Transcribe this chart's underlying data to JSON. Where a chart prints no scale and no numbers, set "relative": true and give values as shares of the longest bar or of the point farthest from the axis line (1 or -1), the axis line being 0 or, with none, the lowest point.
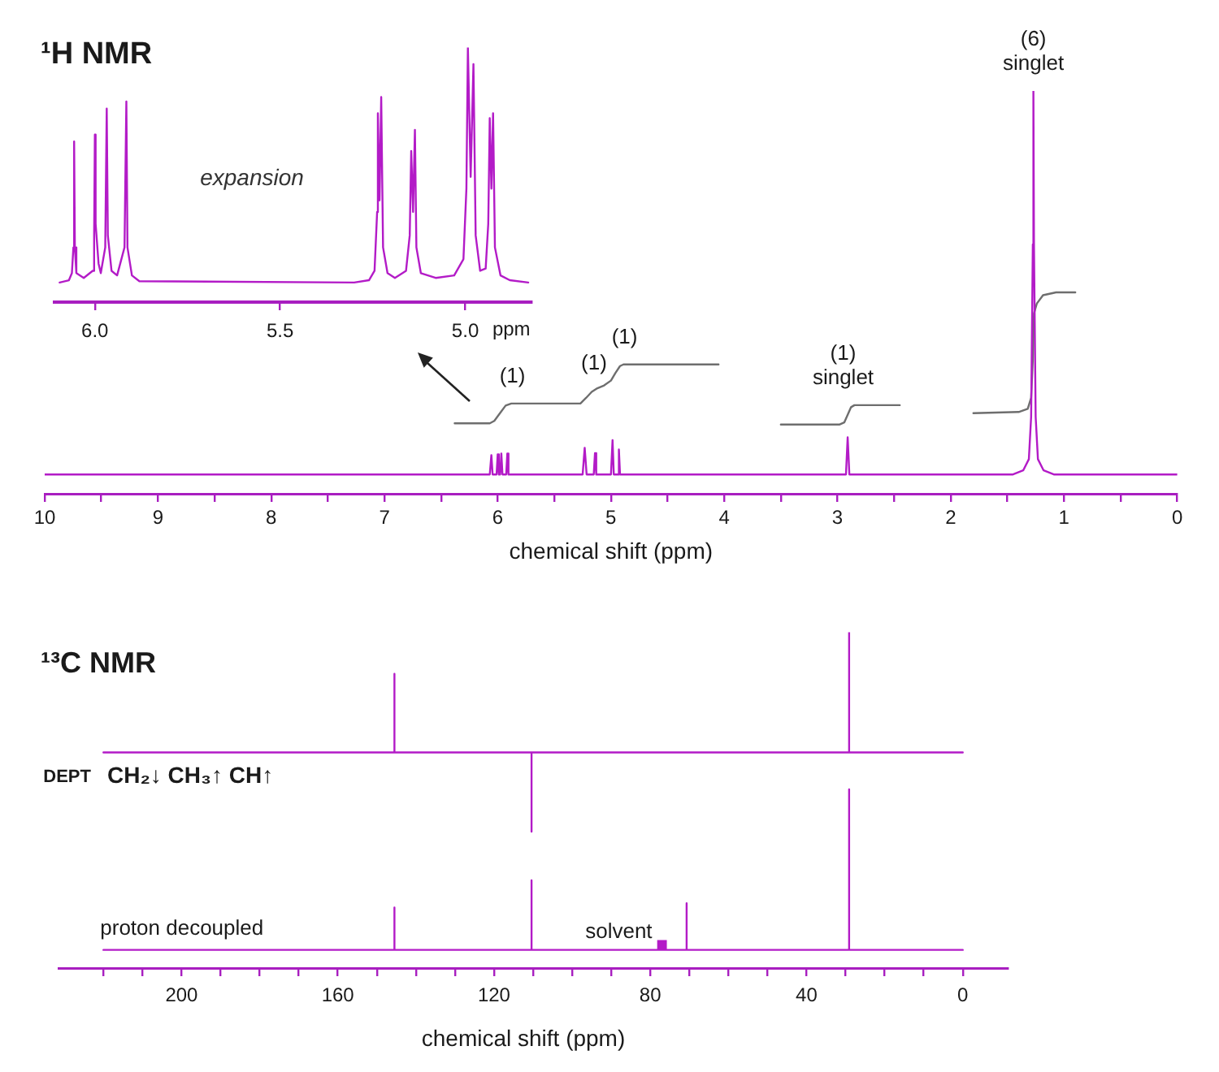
{
  "chart_data": [
    {
      "type": "line",
      "title": "¹H NMR",
      "xlabel": "chemical shift (ppm)",
      "relative": true,
      "marker": "none",
      "xlim": [
        10,
        0
      ],
      "xticks": [
        10,
        {
          "value": 9.5,
          "label": null
        },
        9,
        {
          "value": 8.5,
          "label": null
        },
        8,
        {
          "value": 7.5,
          "label": null
        },
        7,
        {
          "value": 6.5,
          "label": null
        },
        6,
        {
          "value": 5.5,
          "label": null
        },
        5,
        {
          "value": 4.5,
          "label": null
        },
        4,
        {
          "value": 3.5,
          "label": null
        },
        3,
        {
          "value": 2.5,
          "label": null
        },
        2,
        {
          "value": 1.5,
          "label": null
        },
        1,
        {
          "value": 0.5,
          "label": null
        },
        0
      ],
      "series": [
        {
          "color": "#b31bc7",
          "x": [
            10,
            6.07,
            6.056,
            6.045,
            6.01,
            6.0,
            5.99,
            5.978,
            5.968,
            5.958,
            5.925,
            5.915,
            5.905,
            5.25,
            5.232,
            5.215,
            5.152,
            5.141,
            5.13,
            5.0,
            4.986,
            4.975,
            4.94,
            4.93,
            4.92,
            2.925,
            2.91,
            2.895,
            1.45,
            1.36,
            1.31,
            1.29,
            1.275,
            1.27,
            1.265,
            1.25,
            1.23,
            1.18,
            1.09,
            0
          ],
          "values": [
            0.048,
            0.048,
            0.096,
            0.048,
            0.048,
            0.098,
            0.048,
            0.048,
            0.1,
            0.048,
            0.048,
            0.1,
            0.048,
            0.048,
            0.114,
            0.048,
            0.048,
            0.101,
            0.048,
            0.048,
            0.133,
            0.048,
            0.048,
            0.11,
            0.048,
            0.048,
            0.14,
            0.048,
            0.048,
            0.058,
            0.086,
            0.191,
            0.619,
            1,
            0.619,
            0.191,
            0.086,
            0.058,
            0.048,
            0.048
          ]
        },
        {
          "color": "#6e6e6e",
          "x": [
            6.38,
            6.07,
            6.03,
            5.98,
            5.93,
            5.88,
            5.27,
            5.22,
            5.17,
            5.12,
            5.06,
            5.0,
            4.96,
            4.92,
            4.89,
            4.05
          ],
          "values": [
            0.175,
            0.175,
            0.181,
            0.2,
            0.219,
            0.224,
            0.224,
            0.238,
            0.253,
            0.262,
            0.269,
            0.281,
            0.3,
            0.317,
            0.321,
            0.321
          ]
        },
        {
          "color": "#6e6e6e",
          "x": [
            3.5,
            2.98,
            2.94,
            2.91,
            2.88,
            2.85,
            2.45
          ],
          "values": [
            0.172,
            0.172,
            0.177,
            0.196,
            0.215,
            0.22,
            0.22
          ]
        },
        {
          "color": "#6e6e6e",
          "x": [
            1.8,
            1.4,
            1.32,
            1.29,
            1.275,
            1.265,
            1.24,
            1.185,
            1.07,
            0.9
          ],
          "values": [
            0.2,
            0.203,
            0.211,
            0.238,
            0.334,
            0.448,
            0.472,
            0.493,
            0.5,
            0.5
          ]
        }
      ],
      "annotations": [
        {
          "text": "(6)\nsinglet",
          "x": 1.27,
          "y": 1
        },
        {
          "text": "(1)\nsinglet",
          "x": 2.95,
          "y": 0.22
        },
        {
          "text": "(1)",
          "x": 5.87,
          "y": 0.224
        },
        {
          "text": "(1)",
          "x": 5.15,
          "y": 0.257
        },
        {
          "text": "(1)",
          "x": 4.88,
          "y": 0.321
        }
      ]
    },
    {
      "type": "line",
      "xlabel": "ppm",
      "relative": true,
      "marker": "none",
      "xlim": [
        6.11,
        4.82
      ],
      "xticks": [
        {
          "value": 6,
          "label": "6.0"
        },
        {
          "value": 5.5,
          "label": "5.5"
        },
        {
          "value": 5,
          "label": "5.0"
        }
      ],
      "series": [
        {
          "color": "#b31bc7",
          "x": [
            6.095,
            6.07,
            6.062,
            6.058,
            6.056,
            6.054,
            6.05,
            6.03,
            6.006,
            6.002,
            6.0,
            5.998,
            5.99,
            5.984,
            5.972,
            5.968,
            5.965,
            5.955,
            5.94,
            5.92,
            5.915,
            5.912,
            5.9,
            5.88,
            5.3,
            5.26,
            5.245,
            5.238,
            5.236,
            5.2315,
            5.227,
            5.222,
            5.21,
            5.19,
            5.16,
            5.15,
            5.146,
            5.141,
            5.136,
            5.132,
            5.12,
            5.08,
            5.03,
            5.005,
            4.997,
            4.993,
            4.9855,
            4.978,
            4.972,
            4.96,
            4.945,
            4.938,
            4.934,
            4.9295,
            4.925,
            4.92,
            4.905,
            4.88,
            4.83
          ],
          "values": [
            0.077,
            0.086,
            0.114,
            0.215,
            0.631,
            0.215,
            0.114,
            0.095,
            0.123,
            0.262,
            0.658,
            0.308,
            0.151,
            0.114,
            0.215,
            0.76,
            0.262,
            0.123,
            0.105,
            0.215,
            0.788,
            0.215,
            0.105,
            0.082,
            0.077,
            0.086,
            0.123,
            0.354,
            0.742,
            0.4,
            0.806,
            0.215,
            0.114,
            0.095,
            0.123,
            0.262,
            0.594,
            0.354,
            0.677,
            0.215,
            0.114,
            0.095,
            0.105,
            0.169,
            0.446,
            1,
            0.492,
            0.935,
            0.262,
            0.123,
            0.132,
            0.308,
            0.723,
            0.446,
            0.742,
            0.215,
            0.105,
            0.086,
            0.077
          ]
        }
      ],
      "annotations": [
        "expansion"
      ]
    },
    {
      "type": "line",
      "title": "¹³C NMR",
      "xlabel": "chemical shift (ppm)",
      "relative": true,
      "marker": "none",
      "xlim": [
        231.5,
        -11.5
      ],
      "xticks": [
        {
          "value": 220,
          "label": null
        },
        {
          "value": 210,
          "label": null
        },
        200,
        {
          "value": 190,
          "label": null
        },
        {
          "value": 180,
          "label": null
        },
        {
          "value": 170,
          "label": null
        },
        160,
        {
          "value": 150,
          "label": null
        },
        {
          "value": 140,
          "label": null
        },
        {
          "value": 130,
          "label": null
        },
        120,
        {
          "value": 110,
          "label": null
        },
        {
          "value": 100,
          "label": null
        },
        {
          "value": 90,
          "label": null
        },
        80,
        {
          "value": 70,
          "label": null
        },
        {
          "value": 60,
          "label": null
        },
        {
          "value": 50,
          "label": null
        },
        40,
        {
          "value": 30,
          "label": null
        },
        {
          "value": 20,
          "label": null
        },
        {
          "value": 10,
          "label": null
        },
        0
      ],
      "series": [
        {
          "name": "DEPT",
          "color": "#b31bc7",
          "x": [
            220,
            145.5,
            145.5,
            145.5,
            110.4,
            110.4,
            110.4,
            29.1,
            29.1,
            29.1,
            0
          ],
          "values": [
            0.642,
            0.642,
            0.876,
            0.642,
            0.642,
            0.406,
            0.642,
            0.642,
            1,
            0.642,
            0.642
          ]
        },
        {
          "name": "proton decoupled",
          "color": "#b31bc7",
          "x": [
            220,
            145.5,
            145.5,
            145.5,
            110.4,
            110.4,
            110.4,
            70.7,
            70.7,
            70.7,
            29.1,
            29.1,
            29.1,
            0
          ],
          "values": [
            0.054,
            0.054,
            0.18,
            0.054,
            0.054,
            0.261,
            0.054,
            0.054,
            0.193,
            0.054,
            0.054,
            0.532,
            0.054,
            0.054
          ]
        },
        {
          "type": "scatter",
          "marker": "square",
          "color": "#b31bc7",
          "x": [
            77
          ],
          "values": [
            0.069
          ]
        }
      ],
      "annotations": [
        "CH₂↓ CH₃↑ CH↑",
        {
          "text": "solvent",
          "x": 77,
          "y": 0.069
        }
      ]
    }
  ]
}
